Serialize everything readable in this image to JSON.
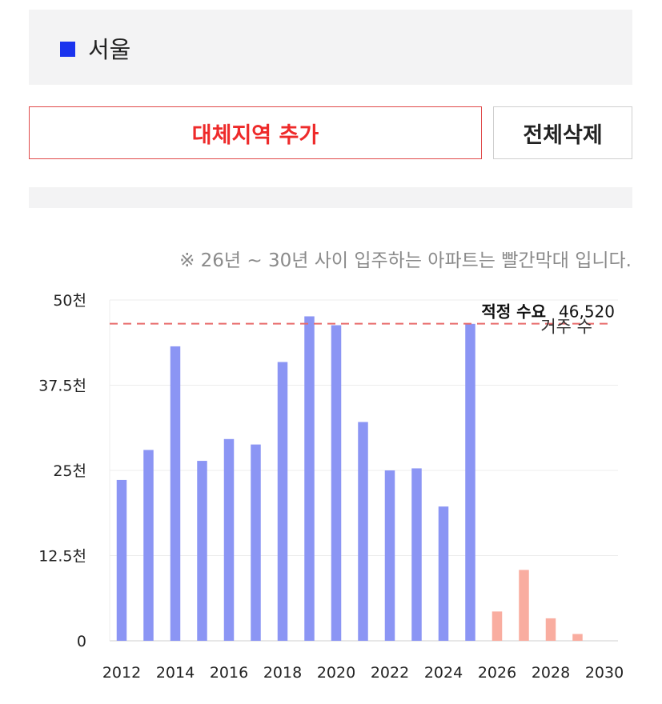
{
  "region": {
    "name": "서울",
    "color": "#1a33ee"
  },
  "buttons": {
    "add_label": "대체지역 추가",
    "delete_label": "전체삭제"
  },
  "note": "※ 26년 ~ 30년 사이 입주하는 아파트는 빨간막대 입니다.",
  "chart_data": {
    "type": "bar",
    "categories": [
      "2012",
      "2013",
      "2014",
      "2015",
      "2016",
      "2017",
      "2018",
      "2019",
      "2020",
      "2021",
      "2022",
      "2023",
      "2024",
      "2025",
      "2026",
      "2027",
      "2028",
      "2029",
      "2030"
    ],
    "x_tick_labels": [
      "2012",
      "2014",
      "2016",
      "2018",
      "2020",
      "2022",
      "2024",
      "2026",
      "2028",
      "2030"
    ],
    "values": [
      23600,
      28000,
      43200,
      26400,
      29600,
      28800,
      40900,
      47600,
      46300,
      32100,
      25000,
      25300,
      19700,
      46500,
      4300,
      10400,
      3300,
      1000,
      0
    ],
    "bar_colors": {
      "past": "#8b95f4",
      "future": "#f9ada0"
    },
    "future_from": "2026",
    "ylim": [
      0,
      50000
    ],
    "y_ticks": [
      0,
      12500,
      25000,
      37500,
      50000
    ],
    "y_tick_labels": [
      "0",
      "12.5천",
      "25천",
      "37.5천",
      "50천"
    ],
    "reference_line": {
      "value": 46520,
      "label": "적정 수요",
      "value_label": "46,520",
      "color": "#e86b6b"
    },
    "overlap_text": "거주 수",
    "grid": true
  }
}
